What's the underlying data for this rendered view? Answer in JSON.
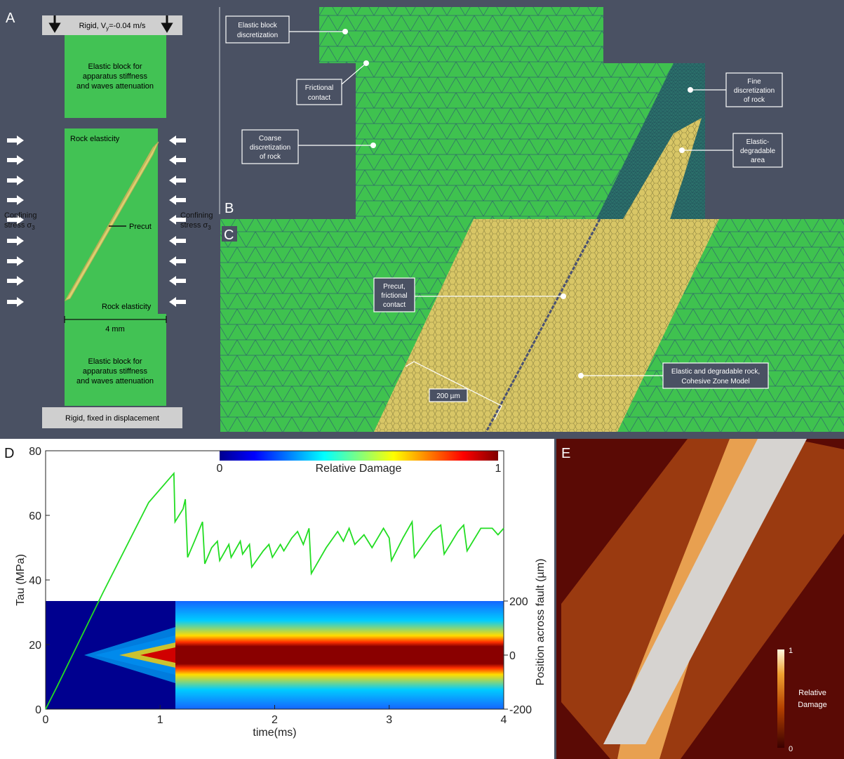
{
  "panel_labels": [
    "A",
    "B",
    "C",
    "D",
    "E"
  ],
  "panel_a": {
    "top_block": {
      "text": "Rigid, V",
      "sub": "y",
      "rest": "=-0.04 m/s"
    },
    "upper_block": [
      "Elastic block for",
      "apparatus stiffness",
      "and waves attenuation"
    ],
    "rock_top": "Rock elasticity",
    "precut": "Precut",
    "rock_bottom": "Rock elasticity",
    "width": "4 mm",
    "lower_block": [
      "Elastic block for",
      "apparatus stiffness",
      "and waves attenuation"
    ],
    "bottom_block": "Rigid, fixed in displacement",
    "confining_left": {
      "lines": [
        "Confining",
        "stress σ"
      ],
      "sub": "3"
    },
    "confining_right": {
      "lines": [
        "Confining",
        "stress σ"
      ],
      "sub": "3"
    }
  },
  "panel_b": {
    "labels": [
      [
        "Elastic block",
        "discretization"
      ],
      [
        "Frictional",
        "contact"
      ],
      [
        "Coarse",
        "discretization",
        "of rock"
      ],
      [
        "Fine",
        "discretization",
        "of rock"
      ],
      [
        "Elastic-",
        "degradable",
        "area"
      ]
    ]
  },
  "panel_c": {
    "labels": [
      [
        "Precut,",
        "frictional",
        "contact"
      ],
      [
        "Elastic and degradable rock,",
        "Cohesive Zone Model"
      ]
    ],
    "scale": "200 µm"
  },
  "chart_data": {
    "type": "line",
    "x": [
      0,
      0.1,
      0.5,
      0.9,
      1.12,
      1.13,
      1.2,
      1.22,
      1.24,
      1.3,
      1.37,
      1.39,
      1.45,
      1.5,
      1.52,
      1.6,
      1.62,
      1.7,
      1.72,
      1.78,
      1.8,
      1.9,
      1.95,
      1.98,
      2.05,
      2.08,
      2.15,
      2.2,
      2.25,
      2.3,
      2.32,
      2.45,
      2.55,
      2.6,
      2.65,
      2.7,
      2.78,
      2.85,
      2.95,
      3.0,
      3.02,
      3.12,
      3.2,
      3.22,
      3.3,
      3.38,
      3.45,
      3.48,
      3.6,
      3.65,
      3.68,
      3.8,
      3.9,
      3.95,
      4.0
    ],
    "series": [
      {
        "color": "#22dd22",
        "values": [
          0,
          7,
          36,
          64,
          73,
          58,
          62,
          65,
          47,
          52,
          58,
          45,
          50,
          52,
          46,
          51,
          47,
          52,
          48,
          51,
          44,
          49,
          51,
          47,
          51,
          49,
          53,
          55,
          51,
          56,
          42,
          50,
          55,
          52,
          56,
          51,
          54,
          50,
          56,
          53,
          46,
          53,
          58,
          47,
          51,
          55,
          57,
          48,
          55,
          57,
          49,
          56,
          56,
          54,
          56
        ]
      }
    ],
    "xlabel": "time(ms)",
    "ylabel": "Tau (MPa)",
    "y2label": "Position across fault (µm)",
    "xlim": [
      0,
      4
    ],
    "xticks": [
      0,
      1,
      2,
      3,
      4
    ],
    "ylim": [
      0,
      80
    ],
    "yticks": [
      0,
      20,
      40,
      60,
      80
    ],
    "y2lim": [
      -200,
      200
    ],
    "y2ticks": [
      -200,
      0,
      200
    ],
    "colorbar": {
      "label": "Relative Damage",
      "ticks": [
        0,
        1
      ]
    }
  },
  "panel_e": {
    "colorbar": {
      "label": [
        "Relative",
        "Damage"
      ],
      "ticks": [
        0,
        1
      ]
    }
  }
}
